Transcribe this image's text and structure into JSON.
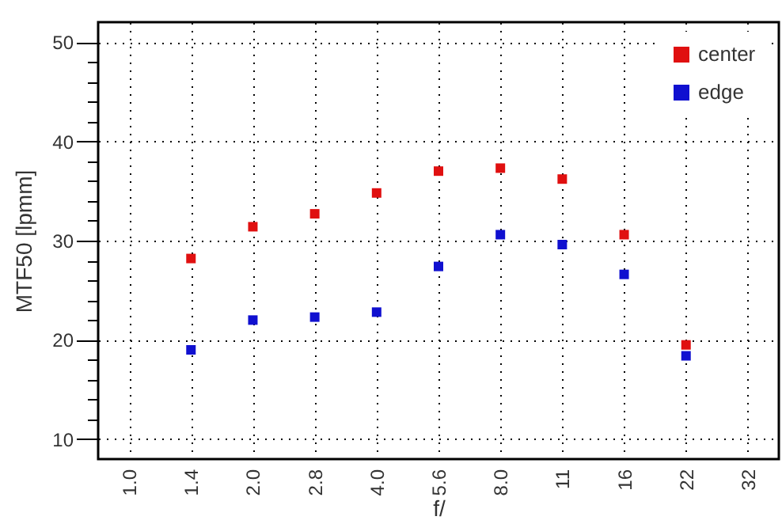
{
  "chart_data": {
    "type": "scatter",
    "xlabel": "f/",
    "ylabel": "MTF50 [lpmm]",
    "categories": [
      "1.0",
      "1.4",
      "2.0",
      "2.8",
      "4.0",
      "5.6",
      "8.0",
      "11",
      "16",
      "22",
      "32"
    ],
    "series": [
      {
        "name": "center",
        "color": "#e01010",
        "values": [
          null,
          28.2,
          31.4,
          32.7,
          34.8,
          37.0,
          37.3,
          36.2,
          30.6,
          19.5,
          null
        ]
      },
      {
        "name": "edge",
        "color": "#1010d0",
        "values": [
          null,
          19.0,
          22.0,
          22.3,
          22.8,
          27.4,
          30.6,
          29.6,
          26.6,
          18.4,
          null
        ]
      }
    ],
    "ylim": [
      8,
      52
    ],
    "yticks": [
      10,
      {
        "value": 12,
        "label": null
      },
      {
        "value": 14,
        "label": null
      },
      {
        "value": 16,
        "label": null
      },
      {
        "value": 18,
        "label": null
      },
      20,
      {
        "value": 22,
        "label": null
      },
      {
        "value": 24,
        "label": null
      },
      {
        "value": 26,
        "label": null
      },
      {
        "value": 28,
        "label": null
      },
      30,
      {
        "value": 32,
        "label": null
      },
      {
        "value": 34,
        "label": null
      },
      {
        "value": 36,
        "label": null
      },
      {
        "value": 38,
        "label": null
      },
      40,
      {
        "value": 42,
        "label": null
      },
      {
        "value": 44,
        "label": null
      },
      {
        "value": 46,
        "label": null
      },
      {
        "value": 48,
        "label": null
      },
      50
    ],
    "grid": true,
    "legend": "top right",
    "marker": "square"
  }
}
